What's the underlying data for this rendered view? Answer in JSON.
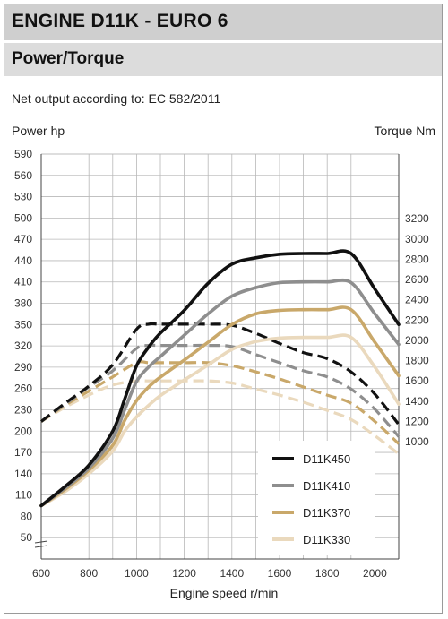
{
  "header": {
    "title": "ENGINE D11K - EURO 6",
    "subtitle": "Power/Torque",
    "note": "Net output according to: EC 582/2011"
  },
  "chart_data": {
    "type": "line",
    "xlabel": "Engine speed r/min",
    "ylabel_left": "Power hp",
    "ylabel_right": "Torque Nm",
    "x_range": [
      600,
      2100
    ],
    "x_ticks": [
      600,
      800,
      1000,
      1200,
      1400,
      1600,
      1800,
      2000
    ],
    "y_left_range": [
      20,
      590
    ],
    "y_left_ticks": [
      50,
      80,
      110,
      140,
      170,
      200,
      230,
      260,
      290,
      320,
      350,
      380,
      410,
      440,
      470,
      500,
      530,
      560,
      590
    ],
    "y_right_range": [
      1000,
      3200
    ],
    "y_right_ticks": [
      1000,
      1200,
      1400,
      1600,
      1800,
      2000,
      2200,
      2400,
      2600,
      2800,
      3000,
      3200
    ],
    "grid": true,
    "legend_position": "bottom-right",
    "legend_entries": [
      "D11K450",
      "D11K410",
      "D11K370",
      "D11K330"
    ],
    "power_series": [
      {
        "name": "D11K450",
        "color": "#111111",
        "x": [
          600,
          700,
          800,
          900,
          950,
          1000,
          1050,
          1100,
          1200,
          1300,
          1400,
          1500,
          1600,
          1700,
          1800,
          1900,
          2000,
          2100
        ],
        "y": [
          95,
          122,
          152,
          200,
          245,
          292,
          318,
          338,
          370,
          408,
          435,
          444,
          449,
          450,
          450,
          450,
          400,
          350
        ]
      },
      {
        "name": "D11K410",
        "color": "#8e8e8e",
        "x": [
          600,
          700,
          800,
          900,
          950,
          1000,
          1050,
          1100,
          1200,
          1300,
          1400,
          1500,
          1600,
          1700,
          1800,
          1900,
          2000,
          2100
        ],
        "y": [
          95,
          120,
          148,
          190,
          230,
          270,
          290,
          305,
          335,
          365,
          390,
          402,
          409,
          410,
          410,
          409,
          365,
          322
        ]
      },
      {
        "name": "D11K370",
        "color": "#c9a86a",
        "x": [
          600,
          700,
          800,
          900,
          950,
          1000,
          1050,
          1100,
          1200,
          1300,
          1400,
          1500,
          1600,
          1700,
          1800,
          1900,
          2000,
          2100
        ],
        "y": [
          95,
          118,
          145,
          180,
          215,
          243,
          262,
          276,
          300,
          325,
          350,
          365,
          370,
          371,
          371,
          371,
          325,
          278
        ]
      },
      {
        "name": "D11K330",
        "color": "#ead9bd",
        "x": [
          600,
          700,
          800,
          900,
          950,
          1000,
          1050,
          1100,
          1200,
          1300,
          1400,
          1500,
          1600,
          1700,
          1800,
          1900,
          2000,
          2100
        ],
        "y": [
          95,
          115,
          140,
          172,
          200,
          220,
          236,
          250,
          272,
          293,
          315,
          326,
          331,
          332,
          332,
          332,
          290,
          238
        ]
      }
    ],
    "torque_series": [
      {
        "name": "D11K450",
        "color": "#111111",
        "x": [
          600,
          700,
          800,
          900,
          1000,
          1050,
          1100,
          1200,
          1300,
          1400,
          1500,
          1600,
          1700,
          1800,
          1900,
          2000,
          2100
        ],
        "y": [
          1200,
          1380,
          1550,
          1760,
          2110,
          2160,
          2160,
          2160,
          2160,
          2150,
          2070,
          1970,
          1880,
          1820,
          1690,
          1470,
          1170
        ]
      },
      {
        "name": "D11K410",
        "color": "#8e8e8e",
        "x": [
          600,
          700,
          800,
          900,
          1000,
          1050,
          1100,
          1200,
          1300,
          1400,
          1500,
          1600,
          1700,
          1800,
          1900,
          2000,
          2100
        ],
        "y": [
          1200,
          1370,
          1540,
          1700,
          1920,
          1950,
          1950,
          1950,
          1950,
          1940,
          1860,
          1780,
          1700,
          1640,
          1520,
          1320,
          1050
        ]
      },
      {
        "name": "D11K370",
        "color": "#c9a86a",
        "x": [
          600,
          700,
          800,
          900,
          1000,
          1050,
          1100,
          1200,
          1300,
          1400,
          1500,
          1600,
          1700,
          1800,
          1900,
          2000,
          2100
        ],
        "y": [
          1200,
          1360,
          1500,
          1640,
          1780,
          1780,
          1780,
          1780,
          1780,
          1750,
          1690,
          1620,
          1540,
          1460,
          1380,
          1200,
          980
        ]
      },
      {
        "name": "D11K330",
        "color": "#ead9bd",
        "x": [
          600,
          700,
          800,
          900,
          1000,
          1050,
          1100,
          1200,
          1300,
          1400,
          1500,
          1600,
          1700,
          1800,
          1900,
          2000,
          2100
        ],
        "y": [
          1200,
          1340,
          1460,
          1560,
          1600,
          1600,
          1600,
          1600,
          1600,
          1580,
          1520,
          1460,
          1390,
          1310,
          1220,
          1060,
          880
        ]
      }
    ]
  }
}
